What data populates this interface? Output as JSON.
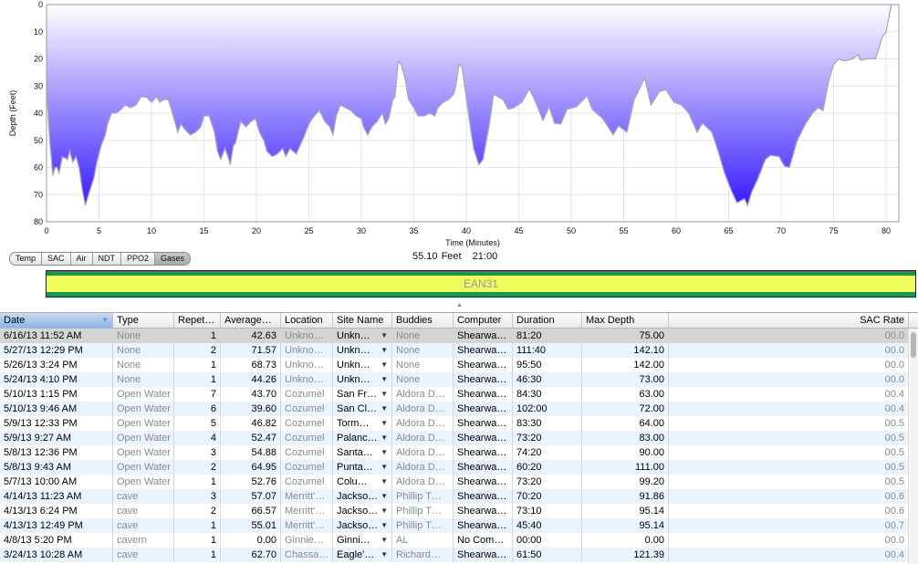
{
  "chart_data": {
    "type": "area",
    "xlabel": "Time (Minutes)",
    "ylabel": "Depth (Feet)",
    "xlim": [
      0,
      81
    ],
    "ylim": [
      0,
      80
    ],
    "y_inverted": true,
    "grid": true,
    "xticks": [
      0,
      5,
      10,
      15,
      20,
      25,
      30,
      35,
      40,
      45,
      50,
      55,
      60,
      65,
      70,
      75,
      80
    ],
    "yticks": [
      0,
      10,
      20,
      30,
      40,
      50,
      60,
      70,
      80
    ],
    "fill_colors": {
      "top": "#ffffff",
      "bottom": "#3a1cff"
    },
    "line_color": "#aaaaaa",
    "points": [
      [
        0,
        30
      ],
      [
        0.3,
        50
      ],
      [
        0.6,
        63
      ],
      [
        0.8,
        60
      ],
      [
        1,
        60
      ],
      [
        1.2,
        62
      ],
      [
        1.5,
        56
      ],
      [
        2,
        57
      ],
      [
        2.2,
        54
      ],
      [
        2.5,
        58
      ],
      [
        2.8,
        56
      ],
      [
        3.1,
        60
      ],
      [
        3.4,
        68
      ],
      [
        3.7,
        74
      ],
      [
        4,
        70
      ],
      [
        4.5,
        64
      ],
      [
        4.8,
        58
      ],
      [
        5.2,
        52
      ],
      [
        5.6,
        48
      ],
      [
        5.8,
        44
      ],
      [
        6.2,
        40
      ],
      [
        6.6,
        40
      ],
      [
        7,
        39
      ],
      [
        7.5,
        37
      ],
      [
        8,
        38
      ],
      [
        8.5,
        37
      ],
      [
        9,
        34
      ],
      [
        9.5,
        34
      ],
      [
        10,
        36
      ],
      [
        10.5,
        34
      ],
      [
        10.8,
        36
      ],
      [
        11.2,
        35
      ],
      [
        11.6,
        35
      ],
      [
        12,
        40
      ],
      [
        12.5,
        47
      ],
      [
        12.8,
        44
      ],
      [
        13.2,
        46
      ],
      [
        13.7,
        48
      ],
      [
        14.2,
        47
      ],
      [
        14.7,
        45
      ],
      [
        15,
        41
      ],
      [
        15.5,
        41
      ],
      [
        16,
        47
      ],
      [
        16.3,
        54
      ],
      [
        16.6,
        57
      ],
      [
        17,
        53
      ],
      [
        17.3,
        56
      ],
      [
        17.5,
        59
      ],
      [
        17.8,
        52
      ],
      [
        18,
        51
      ],
      [
        18.5,
        43
      ],
      [
        19,
        45
      ],
      [
        19.5,
        43
      ],
      [
        19.9,
        42
      ],
      [
        20.3,
        47
      ],
      [
        20.7,
        50
      ],
      [
        21,
        54
      ],
      [
        21.5,
        56
      ],
      [
        22,
        55
      ],
      [
        22.5,
        53
      ],
      [
        22.8,
        56
      ],
      [
        23.2,
        53
      ],
      [
        23.8,
        55
      ],
      [
        24.5,
        49
      ],
      [
        25,
        44
      ],
      [
        25.5,
        41
      ],
      [
        26,
        39
      ],
      [
        26.5,
        43
      ],
      [
        27,
        45
      ],
      [
        27.3,
        48
      ],
      [
        27.6,
        41
      ],
      [
        28,
        37
      ],
      [
        28.5,
        38
      ],
      [
        29,
        39
      ],
      [
        29.5,
        41
      ],
      [
        30,
        42
      ],
      [
        30.2,
        45
      ],
      [
        30.6,
        48
      ],
      [
        31,
        45
      ],
      [
        31.5,
        43
      ],
      [
        32,
        40
      ],
      [
        32.3,
        44
      ],
      [
        32.6,
        42
      ],
      [
        33,
        35
      ],
      [
        33.2,
        34
      ],
      [
        33.5,
        21
      ],
      [
        33.8,
        22
      ],
      [
        34.2,
        28
      ],
      [
        34.5,
        35
      ],
      [
        35,
        38
      ],
      [
        35.4,
        41
      ],
      [
        36,
        41
      ],
      [
        36.5,
        40
      ],
      [
        37,
        41
      ],
      [
        37.3,
        38
      ],
      [
        37.8,
        36
      ],
      [
        38.3,
        35
      ],
      [
        38.8,
        33
      ],
      [
        39,
        30
      ],
      [
        39.3,
        22
      ],
      [
        39.6,
        23
      ],
      [
        40.2,
        40
      ],
      [
        40.7,
        53
      ],
      [
        41.2,
        59
      ],
      [
        41.6,
        57
      ],
      [
        42.2,
        44
      ],
      [
        42.6,
        33
      ],
      [
        43.5,
        35
      ],
      [
        44,
        38.6
      ],
      [
        44.5,
        38
      ],
      [
        45.3,
        36
      ],
      [
        46,
        31
      ],
      [
        46.5,
        35
      ],
      [
        47.3,
        42.7
      ],
      [
        47.9,
        37.6
      ],
      [
        48.4,
        43.7
      ],
      [
        49,
        44
      ],
      [
        49.6,
        38.6
      ],
      [
        50.5,
        37.6
      ],
      [
        51.5,
        33.6
      ],
      [
        52,
        38.6
      ],
      [
        53,
        42
      ],
      [
        54,
        48
      ],
      [
        54.5,
        44.7
      ],
      [
        55.3,
        47
      ],
      [
        56,
        35
      ],
      [
        57,
        27
      ],
      [
        57.6,
        37
      ],
      [
        58.4,
        32
      ],
      [
        59,
        31.3
      ],
      [
        59.8,
        36
      ],
      [
        60.5,
        37
      ],
      [
        61.2,
        40
      ],
      [
        62,
        47
      ],
      [
        62.5,
        43.7
      ],
      [
        63.4,
        47
      ],
      [
        64,
        54
      ],
      [
        64.6,
        62
      ],
      [
        65.3,
        69
      ],
      [
        65.8,
        73
      ],
      [
        66.5,
        71.5
      ],
      [
        66.8,
        74
      ],
      [
        67.2,
        69
      ],
      [
        67.8,
        64
      ],
      [
        68.5,
        57
      ],
      [
        69,
        55.5
      ],
      [
        69.8,
        56
      ],
      [
        70.3,
        59.5
      ],
      [
        70.8,
        60
      ],
      [
        71.5,
        50.4
      ],
      [
        72.3,
        44
      ],
      [
        73,
        40
      ],
      [
        73.5,
        38
      ],
      [
        74,
        39
      ],
      [
        74.5,
        28.6
      ],
      [
        75,
        22
      ],
      [
        75.5,
        20
      ],
      [
        76,
        20.8
      ],
      [
        76.8,
        20
      ],
      [
        77.3,
        18.5
      ],
      [
        77.6,
        20.5
      ],
      [
        78.2,
        20
      ],
      [
        79,
        20
      ],
      [
        79.6,
        12.4
      ],
      [
        80,
        10
      ],
      [
        80.5,
        0
      ]
    ]
  },
  "graph_tabs": [
    "Temp",
    "SAC",
    "Air",
    "NDT",
    "PPO2",
    "Gases"
  ],
  "selected_graph_tab": "Gases",
  "readout": {
    "depth": "55.10 Feet",
    "time": "21:00"
  },
  "gas_bar": {
    "label": "EAN31",
    "fill_color": "#eefc5c",
    "stripe_color": "#1f9452"
  },
  "table": {
    "sorted_column": "Date",
    "columns": [
      "Date",
      "Type",
      "Repet…",
      "Average…",
      "Location",
      "Site Name",
      "Buddies",
      "Computer",
      "Duration",
      "Max Depth",
      "SAC Rate"
    ],
    "selected_row": 0,
    "rows": [
      [
        "6/16/13 11:52 AM",
        "None",
        "1",
        "42.63",
        "Unkno…",
        "Unkn…",
        "None",
        "Shearwa…",
        "81:20",
        "75.00",
        "00.0"
      ],
      [
        "5/27/13 12:29 PM",
        "None",
        "2",
        "71.57",
        "Unkno…",
        "Unkn…",
        "None",
        "Shearwa…",
        "111:40",
        "142.10",
        "00.0"
      ],
      [
        "5/26/13 3:24 PM",
        "None",
        "1",
        "68.73",
        "Unkno…",
        "Unkn…",
        "None",
        "Shearwa…",
        "95:50",
        "142.00",
        "00.0"
      ],
      [
        "5/24/13 4:10 PM",
        "None",
        "1",
        "44.26",
        "Unkno…",
        "Unkn…",
        "None",
        "Shearwa…",
        "46:30",
        "73.00",
        "00.0"
      ],
      [
        "5/10/13 1:15 PM",
        "Open Water",
        "7",
        "43.70",
        "Cozumel",
        "San Fr…",
        "Aldora D…",
        "Shearwa…",
        "84:30",
        "63.00",
        "00.4"
      ],
      [
        "5/10/13 9:46 AM",
        "Open Water",
        "6",
        "39.60",
        "Cozumel",
        "San Cl…",
        "Aldora D…",
        "Shearwa…",
        "102:00",
        "72.00",
        "00.4"
      ],
      [
        "5/9/13 12:33 PM",
        "Open Water",
        "5",
        "46.82",
        "Cozumel",
        "Torm…",
        "Aldora D…",
        "Shearwa…",
        "83:30",
        "64.00",
        "00.5"
      ],
      [
        "5/9/13 9:27 AM",
        "Open Water",
        "4",
        "52.47",
        "Cozumel",
        "Palanc…",
        "Aldora D…",
        "Shearwa…",
        "73:20",
        "83.00",
        "00.5"
      ],
      [
        "5/8/13 12:36 PM",
        "Open Water",
        "3",
        "54.88",
        "Cozumel",
        "Santa…",
        "Aldora D…",
        "Shearwa…",
        "74:20",
        "90.00",
        "00.5"
      ],
      [
        "5/8/13 9:43 AM",
        "Open Water",
        "2",
        "64.95",
        "Cozumel",
        "Punta…",
        "Aldora D…",
        "Shearwa…",
        "60:20",
        "111.00",
        "00.5"
      ],
      [
        "5/7/13 10:00 AM",
        "Open Water",
        "1",
        "52.76",
        "Cozumel",
        "Colu…",
        "Aldora D…",
        "Shearwa…",
        "73:20",
        "99.20",
        "00.5"
      ],
      [
        "4/14/13 11:23 AM",
        "cave",
        "3",
        "57.07",
        "Merritt'…",
        "Jackso…",
        "Phillip T…",
        "Shearwa…",
        "70:20",
        "91.86",
        "00.6"
      ],
      [
        "4/13/13 6:24 PM",
        "cave",
        "2",
        "66.57",
        "Merritt'…",
        "Jackso…",
        "Phillip T…",
        "Shearwa…",
        "73:10",
        "95.14",
        "00.6"
      ],
      [
        "4/13/13 12:49 PM",
        "cave",
        "1",
        "55.01",
        "Merritt'…",
        "Jackso…",
        "Phillip T…",
        "Shearwa…",
        "45:40",
        "95.14",
        "00.7"
      ],
      [
        "4/8/13 5:20 PM",
        "cavern",
        "1",
        "0.00",
        "Ginnie…",
        "Ginni…",
        "AL",
        "No Com…",
        "00:00",
        "0.00",
        "00.0"
      ],
      [
        "3/24/13 10:28 AM",
        "cave",
        "1",
        "62.70",
        "Chassa…",
        "Eagle'…",
        "Richard…",
        "Shearwa…",
        "61:50",
        "121.39",
        "00.4"
      ]
    ]
  }
}
